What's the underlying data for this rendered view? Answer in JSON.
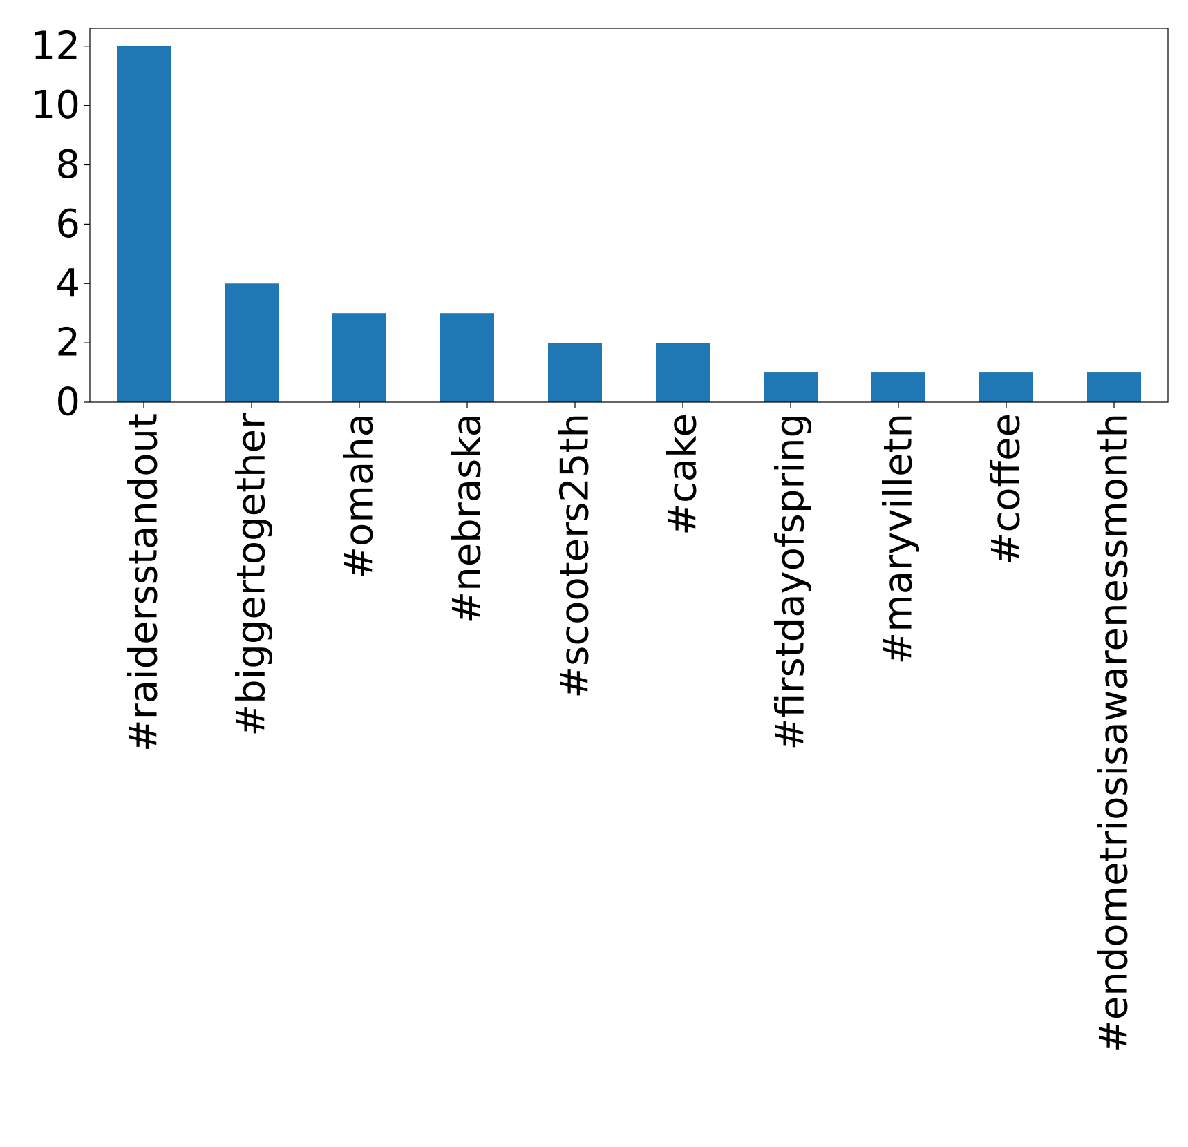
{
  "chart_data": {
    "type": "bar",
    "categories": [
      "#raidersstandout",
      "#biggertogether",
      "#omaha",
      "#nebraska",
      "#scooters25th",
      "#cake",
      "#firstdayofspring",
      "#maryvilletn",
      "#coffee",
      "#endometriosisawarenessmonth"
    ],
    "values": [
      12,
      4,
      3,
      3,
      2,
      2,
      1,
      1,
      1,
      1
    ],
    "title": "",
    "xlabel": "",
    "ylabel": "",
    "ylim": [
      0,
      12.6
    ],
    "yticks": [
      0,
      2,
      4,
      6,
      8,
      10,
      12
    ],
    "grid": false,
    "colors": {
      "bar": "#1f77b4"
    }
  }
}
